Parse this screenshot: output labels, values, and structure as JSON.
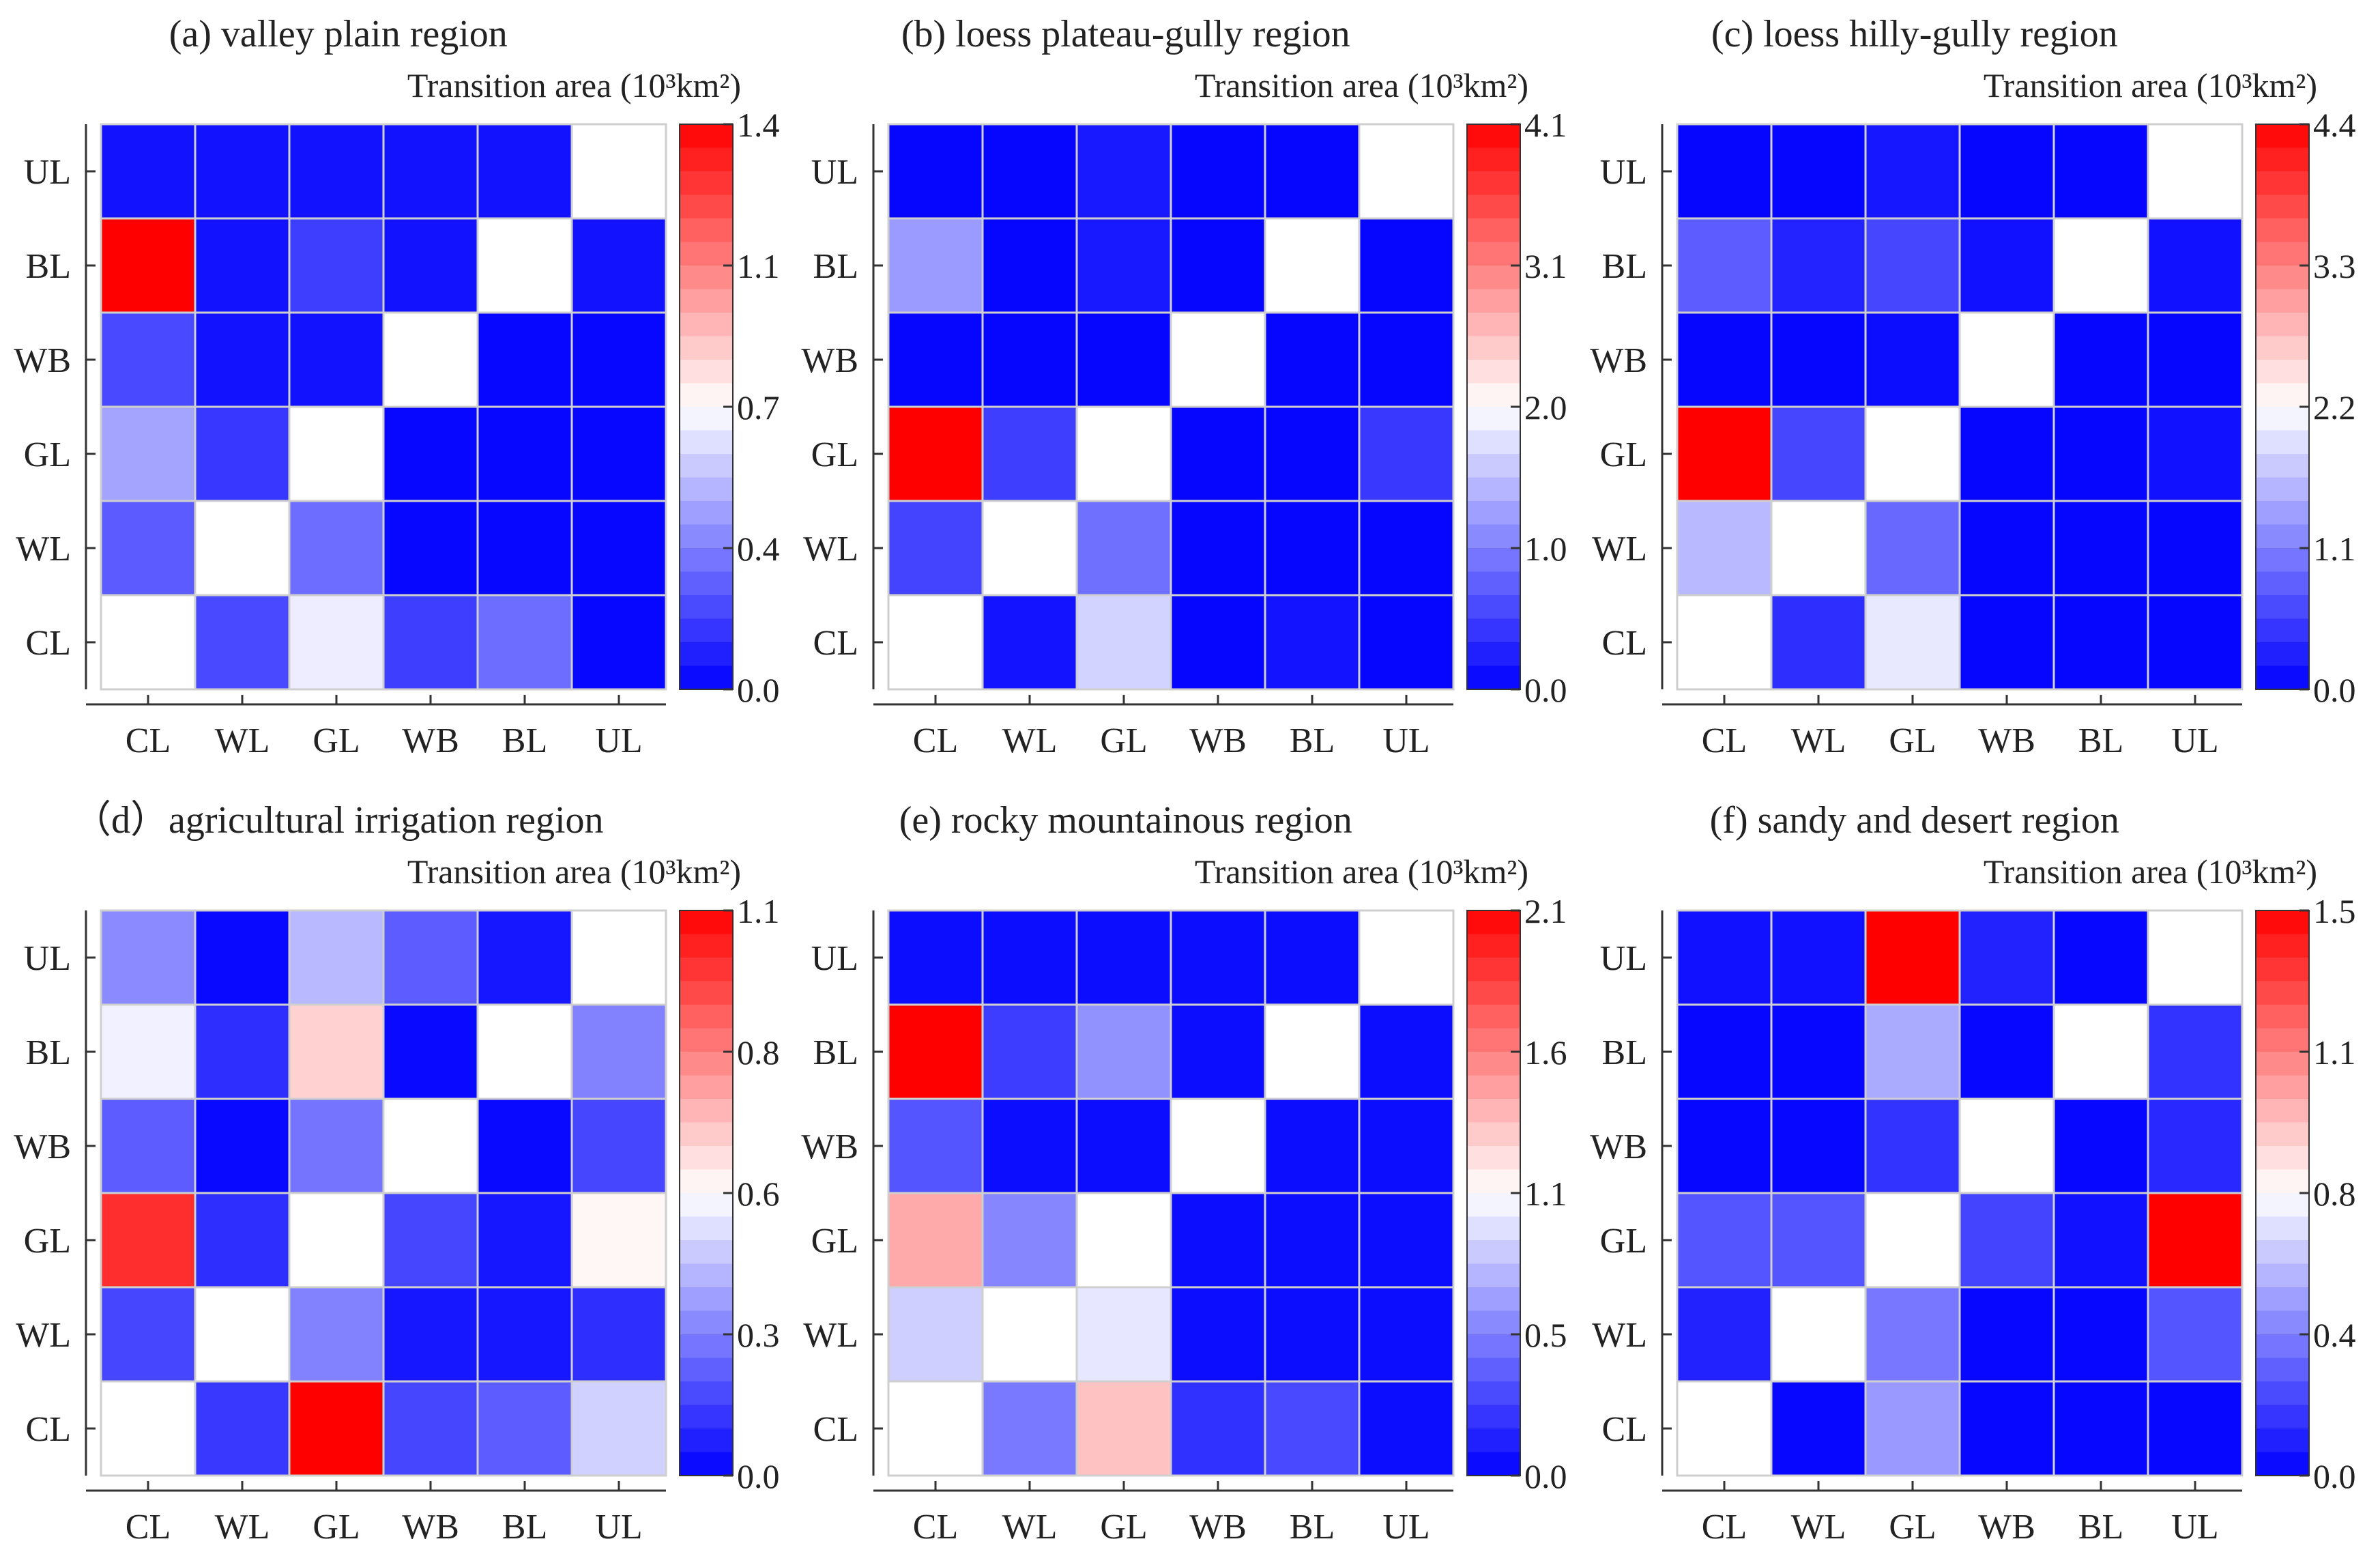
{
  "figure": {
    "row_labels_bottom_to_top": [
      "CL",
      "WL",
      "GL",
      "WB",
      "BL",
      "UL"
    ],
    "col_labels": [
      "CL",
      "WL",
      "GL",
      "WB",
      "BL",
      "UL"
    ],
    "colorbar_label": "Transition area (10³km²)",
    "colors": {
      "low": "#0000ff",
      "mid": "#ffffff",
      "high": "#ff0000",
      "grid": "#cfcfcf",
      "axis": "#333333"
    }
  },
  "chart_data": [
    {
      "type": "heatmap",
      "title": "(a) valley plain region",
      "colorbar_ticks": [
        "0.0",
        "0.4",
        "0.7",
        "1.1",
        "1.4"
      ],
      "vmax": 1.4,
      "values": [
        [
          null,
          0.2,
          0.65,
          0.17,
          0.3,
          0.02
        ],
        [
          0.25,
          null,
          0.3,
          0.02,
          0.02,
          0.02
        ],
        [
          0.45,
          0.15,
          null,
          0.02,
          0.02,
          0.02
        ],
        [
          0.2,
          0.05,
          0.05,
          null,
          0.02,
          0.02
        ],
        [
          1.4,
          0.05,
          0.17,
          0.05,
          null,
          0.05
        ],
        [
          0.05,
          0.05,
          0.05,
          0.05,
          0.05,
          null
        ]
      ]
    },
    {
      "type": "heatmap",
      "title": "(b) loess plateau-gully region",
      "colorbar_ticks": [
        "0.0",
        "1.0",
        "2.0",
        "3.1",
        "4.1"
      ],
      "vmax": 4.1,
      "values": [
        [
          null,
          0.15,
          1.7,
          0.05,
          0.15,
          0.05
        ],
        [
          0.55,
          null,
          0.9,
          0.05,
          0.05,
          0.05
        ],
        [
          4.1,
          0.5,
          null,
          0.05,
          0.05,
          0.45
        ],
        [
          0.05,
          0.05,
          0.05,
          null,
          0.05,
          0.05
        ],
        [
          1.25,
          0.05,
          0.2,
          0.05,
          null,
          0.05
        ],
        [
          0.05,
          0.05,
          0.2,
          0.05,
          0.05,
          null
        ]
      ]
    },
    {
      "type": "heatmap",
      "title": "(c) loess hilly-gully region",
      "colorbar_ticks": [
        "0.0",
        "1.1",
        "2.2",
        "3.3",
        "4.4"
      ],
      "vmax": 4.4,
      "values": [
        [
          null,
          0.4,
          2.0,
          0.05,
          0.05,
          0.05
        ],
        [
          1.6,
          null,
          0.9,
          0.05,
          0.05,
          0.05
        ],
        [
          4.4,
          0.6,
          null,
          0.05,
          0.05,
          0.15
        ],
        [
          0.05,
          0.05,
          0.1,
          null,
          0.05,
          0.05
        ],
        [
          0.8,
          0.3,
          0.6,
          0.15,
          null,
          0.15
        ],
        [
          0.05,
          0.05,
          0.2,
          0.05,
          0.05,
          null
        ]
      ]
    },
    {
      "type": "heatmap",
      "title": "（d）agricultural irrigation region",
      "colorbar_ticks": [
        "0.0",
        "0.3",
        "0.6",
        "0.8",
        "1.1"
      ],
      "vmax": 1.1,
      "values": [
        [
          null,
          0.12,
          1.1,
          0.15,
          0.2,
          0.45
        ],
        [
          0.15,
          null,
          0.28,
          0.05,
          0.05,
          0.1
        ],
        [
          1.0,
          0.1,
          null,
          0.15,
          0.05,
          0.57
        ],
        [
          0.2,
          0.02,
          0.25,
          null,
          0.02,
          0.15
        ],
        [
          0.52,
          0.1,
          0.65,
          0.02,
          null,
          0.28
        ],
        [
          0.3,
          0.02,
          0.4,
          0.2,
          0.05,
          null
        ]
      ]
    },
    {
      "type": "heatmap",
      "title": "(e) rocky mountainous region",
      "colorbar_ticks": [
        "0.0",
        "0.5",
        "1.1",
        "1.6",
        "2.1"
      ],
      "vmax": 2.1,
      "values": [
        [
          null,
          0.5,
          1.3,
          0.2,
          0.3,
          0.05
        ],
        [
          0.85,
          null,
          0.95,
          0.05,
          0.05,
          0.05
        ],
        [
          1.4,
          0.55,
          null,
          0.05,
          0.05,
          0.05
        ],
        [
          0.35,
          0.05,
          0.05,
          null,
          0.05,
          0.05
        ],
        [
          2.1,
          0.25,
          0.6,
          0.05,
          null,
          0.05
        ],
        [
          0.05,
          0.05,
          0.05,
          0.05,
          0.05,
          null
        ]
      ]
    },
    {
      "type": "heatmap",
      "title": "(f) sandy and desert region",
      "colorbar_ticks": [
        "0.0",
        "0.4",
        "0.8",
        "1.1",
        "1.5"
      ],
      "vmax": 1.5,
      "values": [
        [
          null,
          0.02,
          0.45,
          0.02,
          0.02,
          0.02
        ],
        [
          0.1,
          null,
          0.35,
          0.02,
          0.02,
          0.25
        ],
        [
          0.25,
          0.25,
          null,
          0.2,
          0.05,
          1.5
        ],
        [
          0.02,
          0.02,
          0.15,
          null,
          0.02,
          0.12
        ],
        [
          0.02,
          0.02,
          0.5,
          0.02,
          null,
          0.15
        ],
        [
          0.05,
          0.05,
          1.5,
          0.1,
          0.02,
          null
        ]
      ]
    }
  ]
}
